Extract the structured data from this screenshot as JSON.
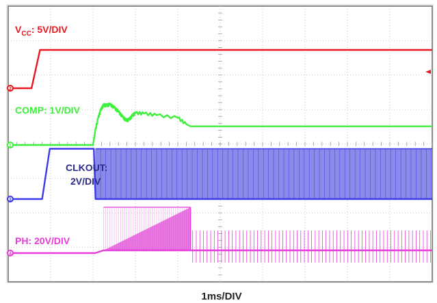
{
  "chart_data": {
    "type": "line",
    "time_base": "1ms/DIV",
    "xlim": [
      0,
      10
    ],
    "xunit": "ms",
    "grid": true,
    "traces": [
      {
        "id": "vcc",
        "label_main": "V",
        "label_sub": "CC",
        "label_rest": ": 5V/DIV",
        "color": "#e8161e",
        "marker": "2",
        "points": [
          [
            0,
            0
          ],
          [
            0.55,
            0
          ],
          [
            0.75,
            8
          ],
          [
            10,
            8
          ]
        ]
      },
      {
        "id": "comp",
        "label": "COMP: 1V/DIV",
        "color": "#3ef03b",
        "marker": "1",
        "points": [
          [
            0,
            0
          ],
          [
            2.0,
            0
          ],
          [
            2.05,
            0.5
          ],
          [
            2.12,
            1.0
          ],
          [
            2.18,
            1.3
          ],
          [
            2.25,
            1.5
          ],
          [
            2.32,
            1.48
          ],
          [
            2.4,
            1.52
          ],
          [
            2.5,
            1.4
          ],
          [
            2.6,
            1.25
          ],
          [
            2.7,
            1.05
          ],
          [
            2.78,
            0.92
          ],
          [
            2.85,
            0.95
          ],
          [
            2.93,
            1.1
          ],
          [
            3.0,
            1.2
          ],
          [
            3.2,
            1.18
          ],
          [
            3.5,
            1.12
          ],
          [
            4.0,
            1.02
          ],
          [
            4.2,
            0.78
          ],
          [
            4.3,
            0.7
          ],
          [
            10,
            0.7
          ]
        ],
        "noise_start": 2.05,
        "noise_end": 4.25,
        "noise_amp": 0.05
      },
      {
        "id": "clkout",
        "label_line1": "CLKOUT:",
        "label_line2": "2V/DIV",
        "color": "#3a3ae8",
        "marker": "3",
        "points": [
          [
            0,
            0
          ],
          [
            0.8,
            0
          ],
          [
            0.98,
            3.5
          ],
          [
            2.02,
            3.5
          ],
          [
            2.06,
            0
          ],
          [
            10,
            0
          ]
        ],
        "switching_start": 2.06,
        "switching_end": 10,
        "switching_high": 3.5,
        "fill": "#8a8ae8"
      },
      {
        "id": "ph",
        "label": "PH: 20V/DIV",
        "color": "#e83ad8",
        "marker": "4",
        "points": [
          [
            0,
            0
          ],
          [
            2.05,
            0
          ],
          [
            2.25,
            0.2
          ],
          [
            4.3,
            0.2
          ],
          [
            10,
            0.2
          ]
        ],
        "ramp_start": 2.25,
        "ramp_end": 4.3,
        "ramp_high": 3.35,
        "ramp_fill": "#e77ae0",
        "burst_start": 4.35,
        "burst_end": 10,
        "burst_high": 1.65,
        "burst_low": -0.7
      }
    ]
  }
}
